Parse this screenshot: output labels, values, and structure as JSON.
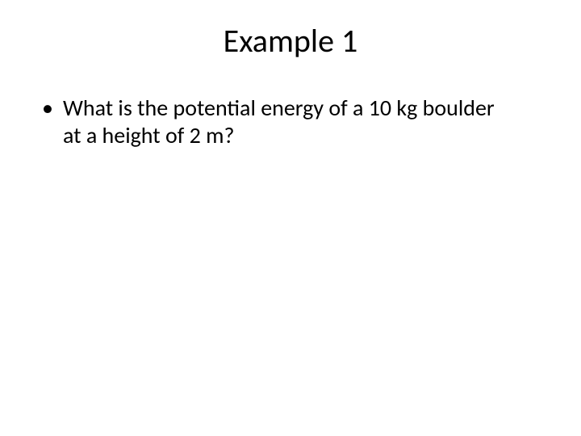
{
  "slide": {
    "title": "Example 1",
    "bullets": [
      {
        "text": "What is the potential energy of a 10 kg boulder at a height of 2 m?"
      }
    ],
    "bullet_marker": "•"
  },
  "style": {
    "background_color": "#ffffff",
    "text_color": "#000000",
    "title_fontsize": 40,
    "body_fontsize": 28,
    "font_family": "Calibri"
  }
}
